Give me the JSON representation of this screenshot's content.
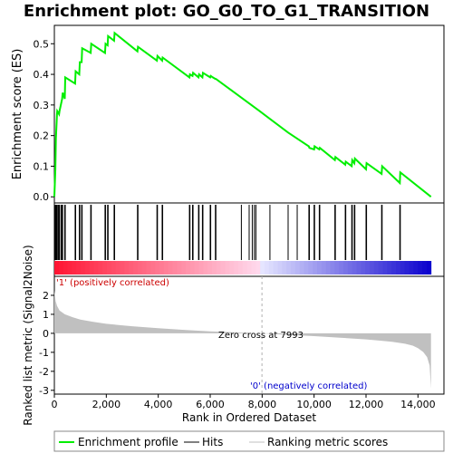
{
  "chart_data": {
    "type": "line",
    "title": "Enrichment plot: GO_G0_TO_G1_TRANSITION",
    "top_panel": {
      "ylabel": "Enrichment score (ES)",
      "ylim": [
        -0.02,
        0.56
      ],
      "yticks": [
        0.0,
        0.1,
        0.2,
        0.3,
        0.4,
        0.5
      ],
      "ytick_labels": [
        "0.0",
        "0.1",
        "0.2",
        "0.3",
        "0.4",
        "0.5"
      ],
      "series": [
        {
          "name": "Enrichment profile",
          "color": "#00ee00",
          "x": [
            0,
            40,
            60,
            100,
            110,
            180,
            200,
            300,
            320,
            400,
            420,
            800,
            820,
            960,
            980,
            1050,
            1070,
            1400,
            1420,
            1950,
            1970,
            2050,
            2070,
            2300,
            2320,
            3200,
            3220,
            3950,
            3970,
            4150,
            4170,
            5200,
            5220,
            5320,
            5340,
            5550,
            5570,
            5700,
            5720,
            6000,
            6020,
            6100,
            6200,
            6220,
            7900,
            9000,
            9800,
            9820,
            10000,
            10020,
            10200,
            10220,
            10800,
            10820,
            11200,
            11220,
            11450,
            11470,
            11550,
            11570,
            12000,
            12020,
            12600,
            12620,
            13300,
            13320,
            14500
          ],
          "y": [
            0.0,
            0.09,
            0.19,
            0.27,
            0.28,
            0.27,
            0.28,
            0.32,
            0.34,
            0.32,
            0.39,
            0.37,
            0.41,
            0.4,
            0.44,
            0.44,
            0.485,
            0.47,
            0.5,
            0.47,
            0.5,
            0.495,
            0.525,
            0.51,
            0.535,
            0.475,
            0.49,
            0.445,
            0.46,
            0.445,
            0.455,
            0.39,
            0.4,
            0.395,
            0.405,
            0.39,
            0.4,
            0.39,
            0.405,
            0.39,
            0.395,
            0.39,
            0.385,
            0.385,
            0.28,
            0.21,
            0.165,
            0.16,
            0.155,
            0.165,
            0.155,
            0.16,
            0.12,
            0.13,
            0.105,
            0.115,
            0.1,
            0.12,
            0.11,
            0.125,
            0.09,
            0.11,
            0.075,
            0.1,
            0.045,
            0.08,
            0.0
          ]
        }
      ]
    },
    "hits": {
      "name": "Hits",
      "positions": [
        20,
        40,
        60,
        80,
        100,
        110,
        150,
        180,
        200,
        260,
        300,
        320,
        400,
        420,
        800,
        820,
        960,
        980,
        1050,
        1070,
        1400,
        1420,
        1950,
        1970,
        2050,
        2070,
        2300,
        2320,
        3200,
        3220,
        3950,
        3970,
        4150,
        4170,
        5200,
        5220,
        5320,
        5340,
        5550,
        5570,
        5700,
        5720,
        6000,
        6020,
        6200,
        6220,
        7200,
        7500,
        7620,
        7700,
        7760,
        8300,
        9000,
        9350,
        9800,
        9820,
        10000,
        10020,
        10200,
        10220,
        10800,
        10820,
        11200,
        11220,
        11450,
        11470,
        11550,
        11570,
        12000,
        12020,
        12600,
        12620,
        13300,
        13320
      ]
    },
    "bottom_panel": {
      "ylabel": "Ranked list metric (Signal2Noise)",
      "ylim": [
        -3.2,
        3.0
      ],
      "yticks": [
        -3,
        -2,
        -1,
        0,
        1,
        2
      ],
      "ytick_labels": [
        "-3",
        "-2",
        "-1",
        "0",
        "1",
        "2"
      ],
      "series": [
        {
          "name": "Ranking metric scores",
          "color": "#c0c0c0",
          "x": [
            0,
            50,
            100,
            200,
            400,
            700,
            1000,
            1500,
            2000,
            3000,
            4000,
            5000,
            6000,
            7000,
            7993,
            9000,
            10000,
            11000,
            12000,
            12500,
            13000,
            13500,
            13800,
            14000,
            14200,
            14350,
            14450,
            14500
          ],
          "y": [
            2.25,
            1.7,
            1.45,
            1.2,
            1.0,
            0.85,
            0.72,
            0.6,
            0.5,
            0.37,
            0.27,
            0.18,
            0.1,
            0.05,
            0.0,
            -0.08,
            -0.15,
            -0.23,
            -0.32,
            -0.38,
            -0.45,
            -0.55,
            -0.65,
            -0.78,
            -0.98,
            -1.25,
            -1.7,
            -2.9
          ]
        }
      ],
      "annotations": {
        "positive": "'1' (positively correlated)",
        "negative": "'0' (negatively correlated)",
        "zero_cross": "Zero cross at 7993",
        "zero_cross_x": 7993
      }
    },
    "xlabel": "Rank in Ordered Dataset",
    "xlim": [
      0,
      15000
    ],
    "xticks": [
      0,
      2000,
      4000,
      6000,
      8000,
      10000,
      12000,
      14000
    ],
    "xtick_labels": [
      "0",
      "2,000",
      "4,000",
      "6,000",
      "8,000",
      "10,000",
      "12,000",
      "14,000"
    ],
    "n_total": 14500,
    "legend": {
      "placement": "bottom",
      "items": [
        {
          "label": "Enrichment profile",
          "color": "#00ee00",
          "style": "line"
        },
        {
          "label": "Hits",
          "color": "#000000",
          "style": "line"
        },
        {
          "label": "Ranking metric scores",
          "color": "#c0c0c0",
          "style": "line"
        }
      ]
    },
    "colors": {
      "positive_text": "#cc0000",
      "negative_text": "#0000cc",
      "zero_cross_text": "#000000",
      "axes": "#000000",
      "grid_ranking": "#c0c0c0"
    }
  }
}
